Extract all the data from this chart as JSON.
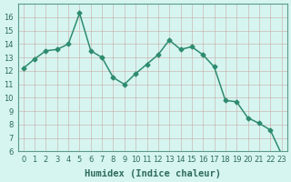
{
  "x": [
    0,
    1,
    2,
    3,
    4,
    5,
    6,
    7,
    8,
    9,
    10,
    11,
    12,
    13,
    14,
    15,
    16,
    17,
    18,
    19,
    20,
    21,
    22,
    23
  ],
  "y": [
    12.2,
    12.9,
    13.5,
    13.6,
    14.0,
    16.3,
    13.5,
    13.0,
    11.5,
    11.0,
    11.8,
    12.5,
    13.2,
    14.3,
    13.6,
    13.8,
    13.2,
    12.3,
    9.8,
    9.7,
    8.5,
    8.1,
    7.6,
    5.8
  ],
  "line_color": "#2e8b6e",
  "bg_color": "#d6f5f0",
  "xlabel": "Humidex (Indice chaleur)",
  "ylim": [
    6,
    17
  ],
  "xlim": [
    -0.5,
    23.5
  ],
  "yticks": [
    6,
    7,
    8,
    9,
    10,
    11,
    12,
    13,
    14,
    15,
    16
  ],
  "xticks": [
    0,
    1,
    2,
    3,
    4,
    5,
    6,
    7,
    8,
    9,
    10,
    11,
    12,
    13,
    14,
    15,
    16,
    17,
    18,
    19,
    20,
    21,
    22,
    23
  ],
  "marker": "D",
  "markersize": 2.5,
  "linewidth": 1.1,
  "xlabel_fontsize": 7.5,
  "tick_fontsize": 6.0,
  "tick_color": "#2e6b5e",
  "spine_color": "#5a9a8a",
  "grid_major_color": "#c8a8a8",
  "grid_minor_color": "#e8d0d0"
}
